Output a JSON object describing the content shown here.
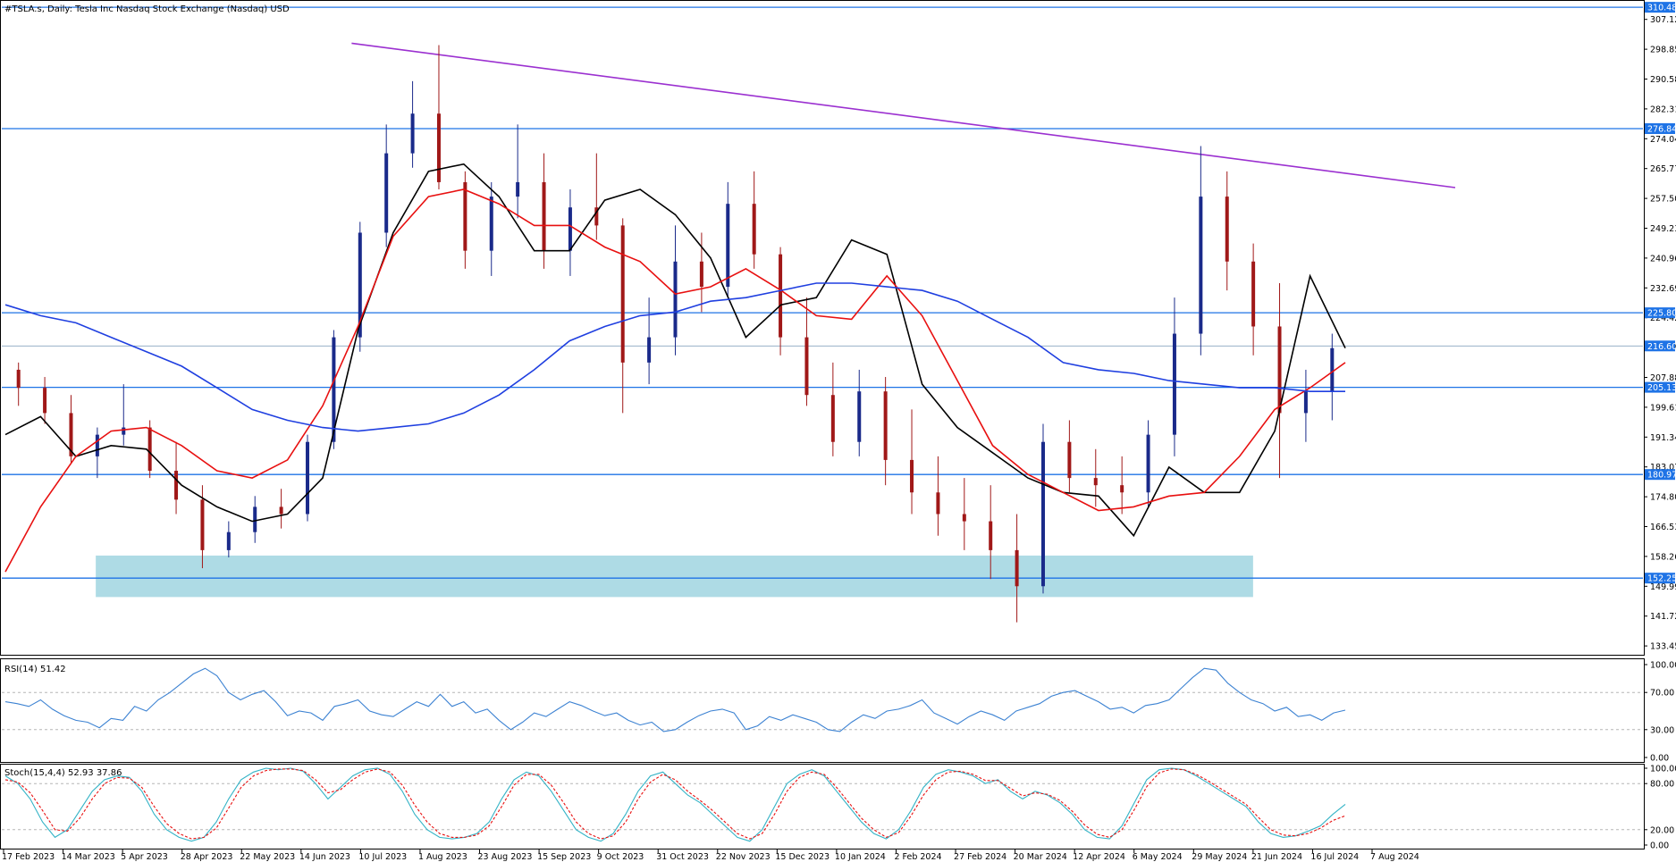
{
  "title": "#TSLA.s, Daily:  Tesla Inc Nasdaq Stock Exchange (Nasdaq) USD",
  "colors": {
    "hline": "#1e73e6",
    "trendline": "#9b30d0",
    "ma_fast": "#000000",
    "ma_mid": "#e81010",
    "ma_slow": "#1f3fe0",
    "zone": "#aedbe5",
    "bull_candle": "#1a2a8a",
    "bear_candle": "#a01818",
    "rsi_line": "#3c82d2",
    "stoch_main": "#33b3c6",
    "stoch_signal": "#e81010"
  },
  "chart_data": {
    "type": "candlestick",
    "price_axis": {
      "ticks": [
        "307.12",
        "298.85",
        "290.58",
        "282.31",
        "274.04",
        "265.77",
        "257.50",
        "249.23",
        "240.96",
        "232.69",
        "224.42",
        "216.60",
        "207.88",
        "199.61",
        "191.34",
        "183.07",
        "174.80",
        "166.53",
        "158.26",
        "149.99",
        "141.72",
        "133.45"
      ],
      "range": [
        131,
        312
      ]
    },
    "date_axis": {
      "ticks": [
        "17 Feb 2023",
        "14 Mar 2023",
        "5 Apr 2023",
        "28 Apr 2023",
        "22 May 2023",
        "14 Jun 2023",
        "10 Jul 2023",
        "1 Aug 2023",
        "23 Aug 2023",
        "15 Sep 2023",
        "9 Oct 2023",
        "31 Oct 2023",
        "22 Nov 2023",
        "15 Dec 2023",
        "10 Jan 2024",
        "2 Feb 2024",
        "27 Feb 2024",
        "20 Mar 2024",
        "12 Apr 2024",
        "6 May 2024",
        "29 May 2024",
        "21 Jun 2024",
        "16 Jul 2024",
        "7 Aug 2024"
      ]
    },
    "horizontal_levels": [
      {
        "price": 310.48,
        "label": "310.48"
      },
      {
        "price": 276.84,
        "label": "276.84"
      },
      {
        "price": 225.8,
        "label": "225.80"
      },
      {
        "price": 205.13,
        "label": "205.13"
      },
      {
        "price": 180.97,
        "label": "180.97"
      },
      {
        "price": 152.25,
        "label": "152.25"
      }
    ],
    "current_price": {
      "price": 216.6,
      "label": "216.60"
    },
    "zone": {
      "from_date": "5 Apr 2023",
      "to_date": "21 Jun 2024",
      "low": 147.0,
      "high": 158.5
    },
    "trendline": {
      "start_date": "10 Jul 2023",
      "start_price": 300.5,
      "end_date": "7 Aug 2024",
      "end_price": 260.5
    },
    "moving_averages": [
      {
        "color": "ma_fast",
        "points": [
          [
            0,
            192
          ],
          [
            1,
            197
          ],
          [
            2,
            186
          ],
          [
            3,
            189
          ],
          [
            4,
            188
          ],
          [
            5,
            178
          ],
          [
            6,
            172
          ],
          [
            7,
            168
          ],
          [
            8,
            170
          ],
          [
            9,
            180
          ],
          [
            10,
            221
          ],
          [
            11,
            248
          ],
          [
            12,
            265
          ],
          [
            13,
            267
          ],
          [
            14,
            258
          ],
          [
            15,
            243
          ],
          [
            16,
            243
          ],
          [
            17,
            257
          ],
          [
            18,
            260
          ],
          [
            19,
            253
          ],
          [
            20,
            241
          ],
          [
            21,
            219
          ],
          [
            22,
            228
          ],
          [
            23,
            230
          ],
          [
            24,
            246
          ],
          [
            25,
            242
          ],
          [
            26,
            206
          ],
          [
            27,
            194
          ],
          [
            28,
            187
          ],
          [
            29,
            180
          ],
          [
            30,
            176
          ],
          [
            31,
            175
          ],
          [
            32,
            164
          ],
          [
            33,
            183
          ],
          [
            34,
            176
          ],
          [
            35,
            176
          ],
          [
            36,
            193
          ],
          [
            37,
            236
          ],
          [
            38,
            216
          ]
        ]
      },
      {
        "color": "ma_mid",
        "points": [
          [
            0,
            154
          ],
          [
            1,
            172
          ],
          [
            2,
            186
          ],
          [
            3,
            193
          ],
          [
            4,
            194
          ],
          [
            5,
            189
          ],
          [
            6,
            182
          ],
          [
            7,
            180
          ],
          [
            8,
            185
          ],
          [
            9,
            200
          ],
          [
            10,
            222
          ],
          [
            11,
            247
          ],
          [
            12,
            258
          ],
          [
            13,
            260
          ],
          [
            14,
            256
          ],
          [
            15,
            250
          ],
          [
            16,
            250
          ],
          [
            17,
            244
          ],
          [
            18,
            240
          ],
          [
            19,
            231
          ],
          [
            20,
            233
          ],
          [
            21,
            238
          ],
          [
            22,
            232
          ],
          [
            23,
            225
          ],
          [
            24,
            224
          ],
          [
            25,
            236
          ],
          [
            26,
            225
          ],
          [
            27,
            207
          ],
          [
            28,
            189
          ],
          [
            29,
            181
          ],
          [
            30,
            176
          ],
          [
            31,
            171
          ],
          [
            32,
            172
          ],
          [
            33,
            175
          ],
          [
            34,
            176
          ],
          [
            35,
            186
          ],
          [
            36,
            199
          ],
          [
            37,
            205
          ],
          [
            38,
            212
          ]
        ]
      },
      {
        "color": "ma_slow",
        "points": [
          [
            0,
            228
          ],
          [
            1,
            225
          ],
          [
            2,
            223
          ],
          [
            3,
            219
          ],
          [
            4,
            215
          ],
          [
            5,
            211
          ],
          [
            6,
            205
          ],
          [
            7,
            199
          ],
          [
            8,
            196
          ],
          [
            9,
            194
          ],
          [
            10,
            193
          ],
          [
            11,
            194
          ],
          [
            12,
            195
          ],
          [
            13,
            198
          ],
          [
            14,
            203
          ],
          [
            15,
            210
          ],
          [
            16,
            218
          ],
          [
            17,
            222
          ],
          [
            18,
            225
          ],
          [
            19,
            226
          ],
          [
            20,
            229
          ],
          [
            21,
            230
          ],
          [
            22,
            232
          ],
          [
            23,
            234
          ],
          [
            24,
            234
          ],
          [
            25,
            233
          ],
          [
            26,
            232
          ],
          [
            27,
            229
          ],
          [
            28,
            224
          ],
          [
            29,
            219
          ],
          [
            30,
            212
          ],
          [
            31,
            210
          ],
          [
            32,
            209
          ],
          [
            33,
            207
          ],
          [
            34,
            206
          ],
          [
            35,
            205
          ],
          [
            36,
            205
          ],
          [
            37,
            204
          ],
          [
            38,
            204
          ]
        ]
      }
    ],
    "candles_sample": [
      [
        210,
        212,
        200,
        205
      ],
      [
        205,
        208,
        195,
        198
      ],
      [
        198,
        203,
        184,
        186
      ],
      [
        186,
        194,
        180,
        192
      ],
      [
        192,
        206,
        189,
        194
      ],
      [
        194,
        196,
        180,
        182
      ],
      [
        182,
        190,
        170,
        174
      ],
      [
        174,
        178,
        155,
        160
      ],
      [
        160,
        168,
        158,
        165
      ],
      [
        165,
        175,
        162,
        172
      ],
      [
        172,
        177,
        166,
        170
      ],
      [
        170,
        192,
        168,
        190
      ],
      [
        190,
        221,
        188,
        219
      ],
      [
        219,
        251,
        215,
        248
      ],
      [
        248,
        278,
        244,
        270
      ],
      [
        270,
        290,
        266,
        281
      ],
      [
        281,
        300,
        260,
        262
      ],
      [
        262,
        265,
        238,
        243
      ],
      [
        243,
        262,
        236,
        258
      ],
      [
        258,
        278,
        252,
        262
      ],
      [
        262,
        270,
        238,
        243
      ],
      [
        243,
        260,
        236,
        255
      ],
      [
        255,
        270,
        246,
        250
      ],
      [
        250,
        252,
        198,
        212
      ],
      [
        212,
        230,
        206,
        219
      ],
      [
        219,
        250,
        214,
        240
      ],
      [
        240,
        248,
        226,
        233
      ],
      [
        233,
        262,
        230,
        256
      ],
      [
        256,
        265,
        238,
        242
      ],
      [
        242,
        244,
        214,
        219
      ],
      [
        219,
        230,
        200,
        203
      ],
      [
        203,
        212,
        186,
        190
      ],
      [
        190,
        210,
        186,
        204
      ],
      [
        204,
        208,
        178,
        185
      ],
      [
        185,
        199,
        170,
        176
      ],
      [
        176,
        186,
        164,
        170
      ],
      [
        170,
        180,
        160,
        168
      ],
      [
        168,
        178,
        152,
        160
      ],
      [
        160,
        170,
        140,
        150
      ],
      [
        150,
        195,
        148,
        190
      ],
      [
        190,
        196,
        176,
        180
      ],
      [
        180,
        188,
        172,
        178
      ],
      [
        178,
        186,
        170,
        176
      ],
      [
        176,
        196,
        172,
        192
      ],
      [
        192,
        230,
        186,
        220
      ],
      [
        220,
        272,
        214,
        258
      ],
      [
        258,
        265,
        232,
        240
      ],
      [
        240,
        245,
        214,
        222
      ],
      [
        222,
        234,
        180,
        198
      ],
      [
        198,
        210,
        190,
        204
      ],
      [
        204,
        220,
        196,
        216
      ]
    ]
  },
  "indicators": {
    "rsi": {
      "label": "RSI(14) 51.42",
      "levels": [
        "100.00",
        "70.00",
        "30.00",
        "0.00"
      ],
      "values": [
        60,
        58,
        55,
        62,
        52,
        45,
        40,
        38,
        32,
        42,
        40,
        55,
        50,
        62,
        70,
        80,
        90,
        96,
        88,
        70,
        62,
        68,
        72,
        60,
        45,
        50,
        48,
        40,
        55,
        58,
        62,
        50,
        46,
        44,
        52,
        60,
        55,
        68,
        55,
        60,
        48,
        52,
        40,
        30,
        38,
        48,
        44,
        52,
        60,
        56,
        50,
        45,
        48,
        40,
        35,
        38,
        28,
        30,
        38,
        45,
        50,
        52,
        48,
        30,
        34,
        44,
        40,
        46,
        42,
        38,
        30,
        28,
        38,
        46,
        42,
        50,
        52,
        56,
        62,
        48,
        42,
        36,
        44,
        50,
        46,
        40,
        50,
        54,
        58,
        66,
        70,
        72,
        66,
        60,
        52,
        54,
        48,
        56,
        58,
        62,
        74,
        86,
        96,
        94,
        80,
        70,
        62,
        58,
        50,
        54,
        44,
        46,
        40,
        48,
        51
      ]
    },
    "stoch": {
      "label": "Stoch(15,4,4) 52.93 37.86",
      "levels": [
        "100.00",
        "80.00",
        "20.00",
        "0.00"
      ],
      "main": [
        90,
        80,
        60,
        30,
        10,
        20,
        45,
        70,
        85,
        90,
        88,
        70,
        40,
        20,
        10,
        5,
        10,
        30,
        60,
        85,
        95,
        100,
        98,
        100,
        96,
        80,
        60,
        75,
        90,
        98,
        100,
        92,
        70,
        40,
        20,
        10,
        8,
        10,
        15,
        30,
        60,
        85,
        95,
        90,
        70,
        45,
        20,
        10,
        5,
        15,
        40,
        70,
        90,
        95,
        80,
        65,
        55,
        40,
        25,
        10,
        5,
        20,
        50,
        80,
        92,
        98,
        90,
        70,
        50,
        30,
        15,
        8,
        20,
        45,
        75,
        92,
        98,
        95,
        90,
        80,
        85,
        70,
        60,
        70,
        65,
        55,
        40,
        20,
        10,
        8,
        25,
        55,
        85,
        98,
        100,
        98,
        90,
        80,
        70,
        60,
        50,
        30,
        15,
        10,
        12,
        18,
        25,
        40,
        53
      ],
      "signal": [
        85,
        82,
        68,
        45,
        20,
        18,
        35,
        60,
        80,
        88,
        87,
        75,
        50,
        28,
        15,
        8,
        10,
        22,
        48,
        75,
        90,
        97,
        99,
        99,
        97,
        85,
        68,
        72,
        85,
        95,
        99,
        95,
        78,
        52,
        30,
        15,
        10,
        10,
        13,
        25,
        50,
        78,
        92,
        92,
        78,
        55,
        30,
        15,
        8,
        12,
        30,
        60,
        82,
        92,
        85,
        70,
        58,
        45,
        30,
        15,
        8,
        15,
        40,
        70,
        88,
        95,
        92,
        75,
        55,
        35,
        20,
        10,
        16,
        38,
        65,
        85,
        95,
        96,
        92,
        84,
        84,
        74,
        64,
        68,
        66,
        58,
        44,
        26,
        14,
        10,
        20,
        46,
        76,
        94,
        99,
        98,
        92,
        83,
        73,
        63,
        53,
        36,
        20,
        13,
        12,
        15,
        22,
        32,
        38
      ]
    }
  }
}
